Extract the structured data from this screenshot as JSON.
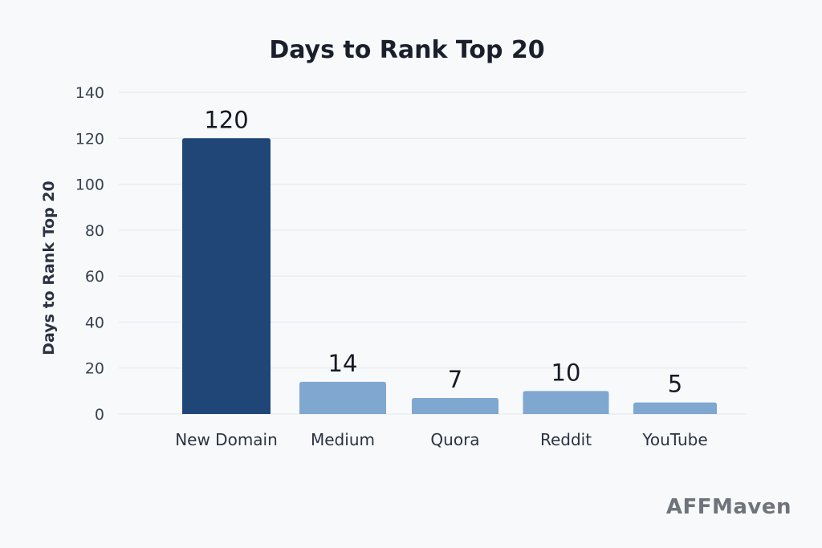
{
  "chart_data": {
    "type": "bar",
    "title": "Days to Rank Top 20",
    "xlabel": "",
    "ylabel": "Days to Rank Top 20",
    "categories": [
      "New Domain",
      "Medium",
      "Quora",
      "Reddit",
      "YouTube"
    ],
    "values": [
      120,
      14,
      7,
      10,
      5
    ],
    "data_labels": [
      "120",
      "14",
      "7",
      "10",
      "5"
    ],
    "ylim": [
      0,
      140
    ],
    "yticks": [
      0,
      20,
      40,
      60,
      80,
      100,
      120,
      140
    ],
    "grid": true,
    "colors": {
      "highlight_bar": "#1f4677",
      "bar": "#7fa7cf",
      "background": "#f7f9fb"
    }
  },
  "watermark": "AFFMaven"
}
